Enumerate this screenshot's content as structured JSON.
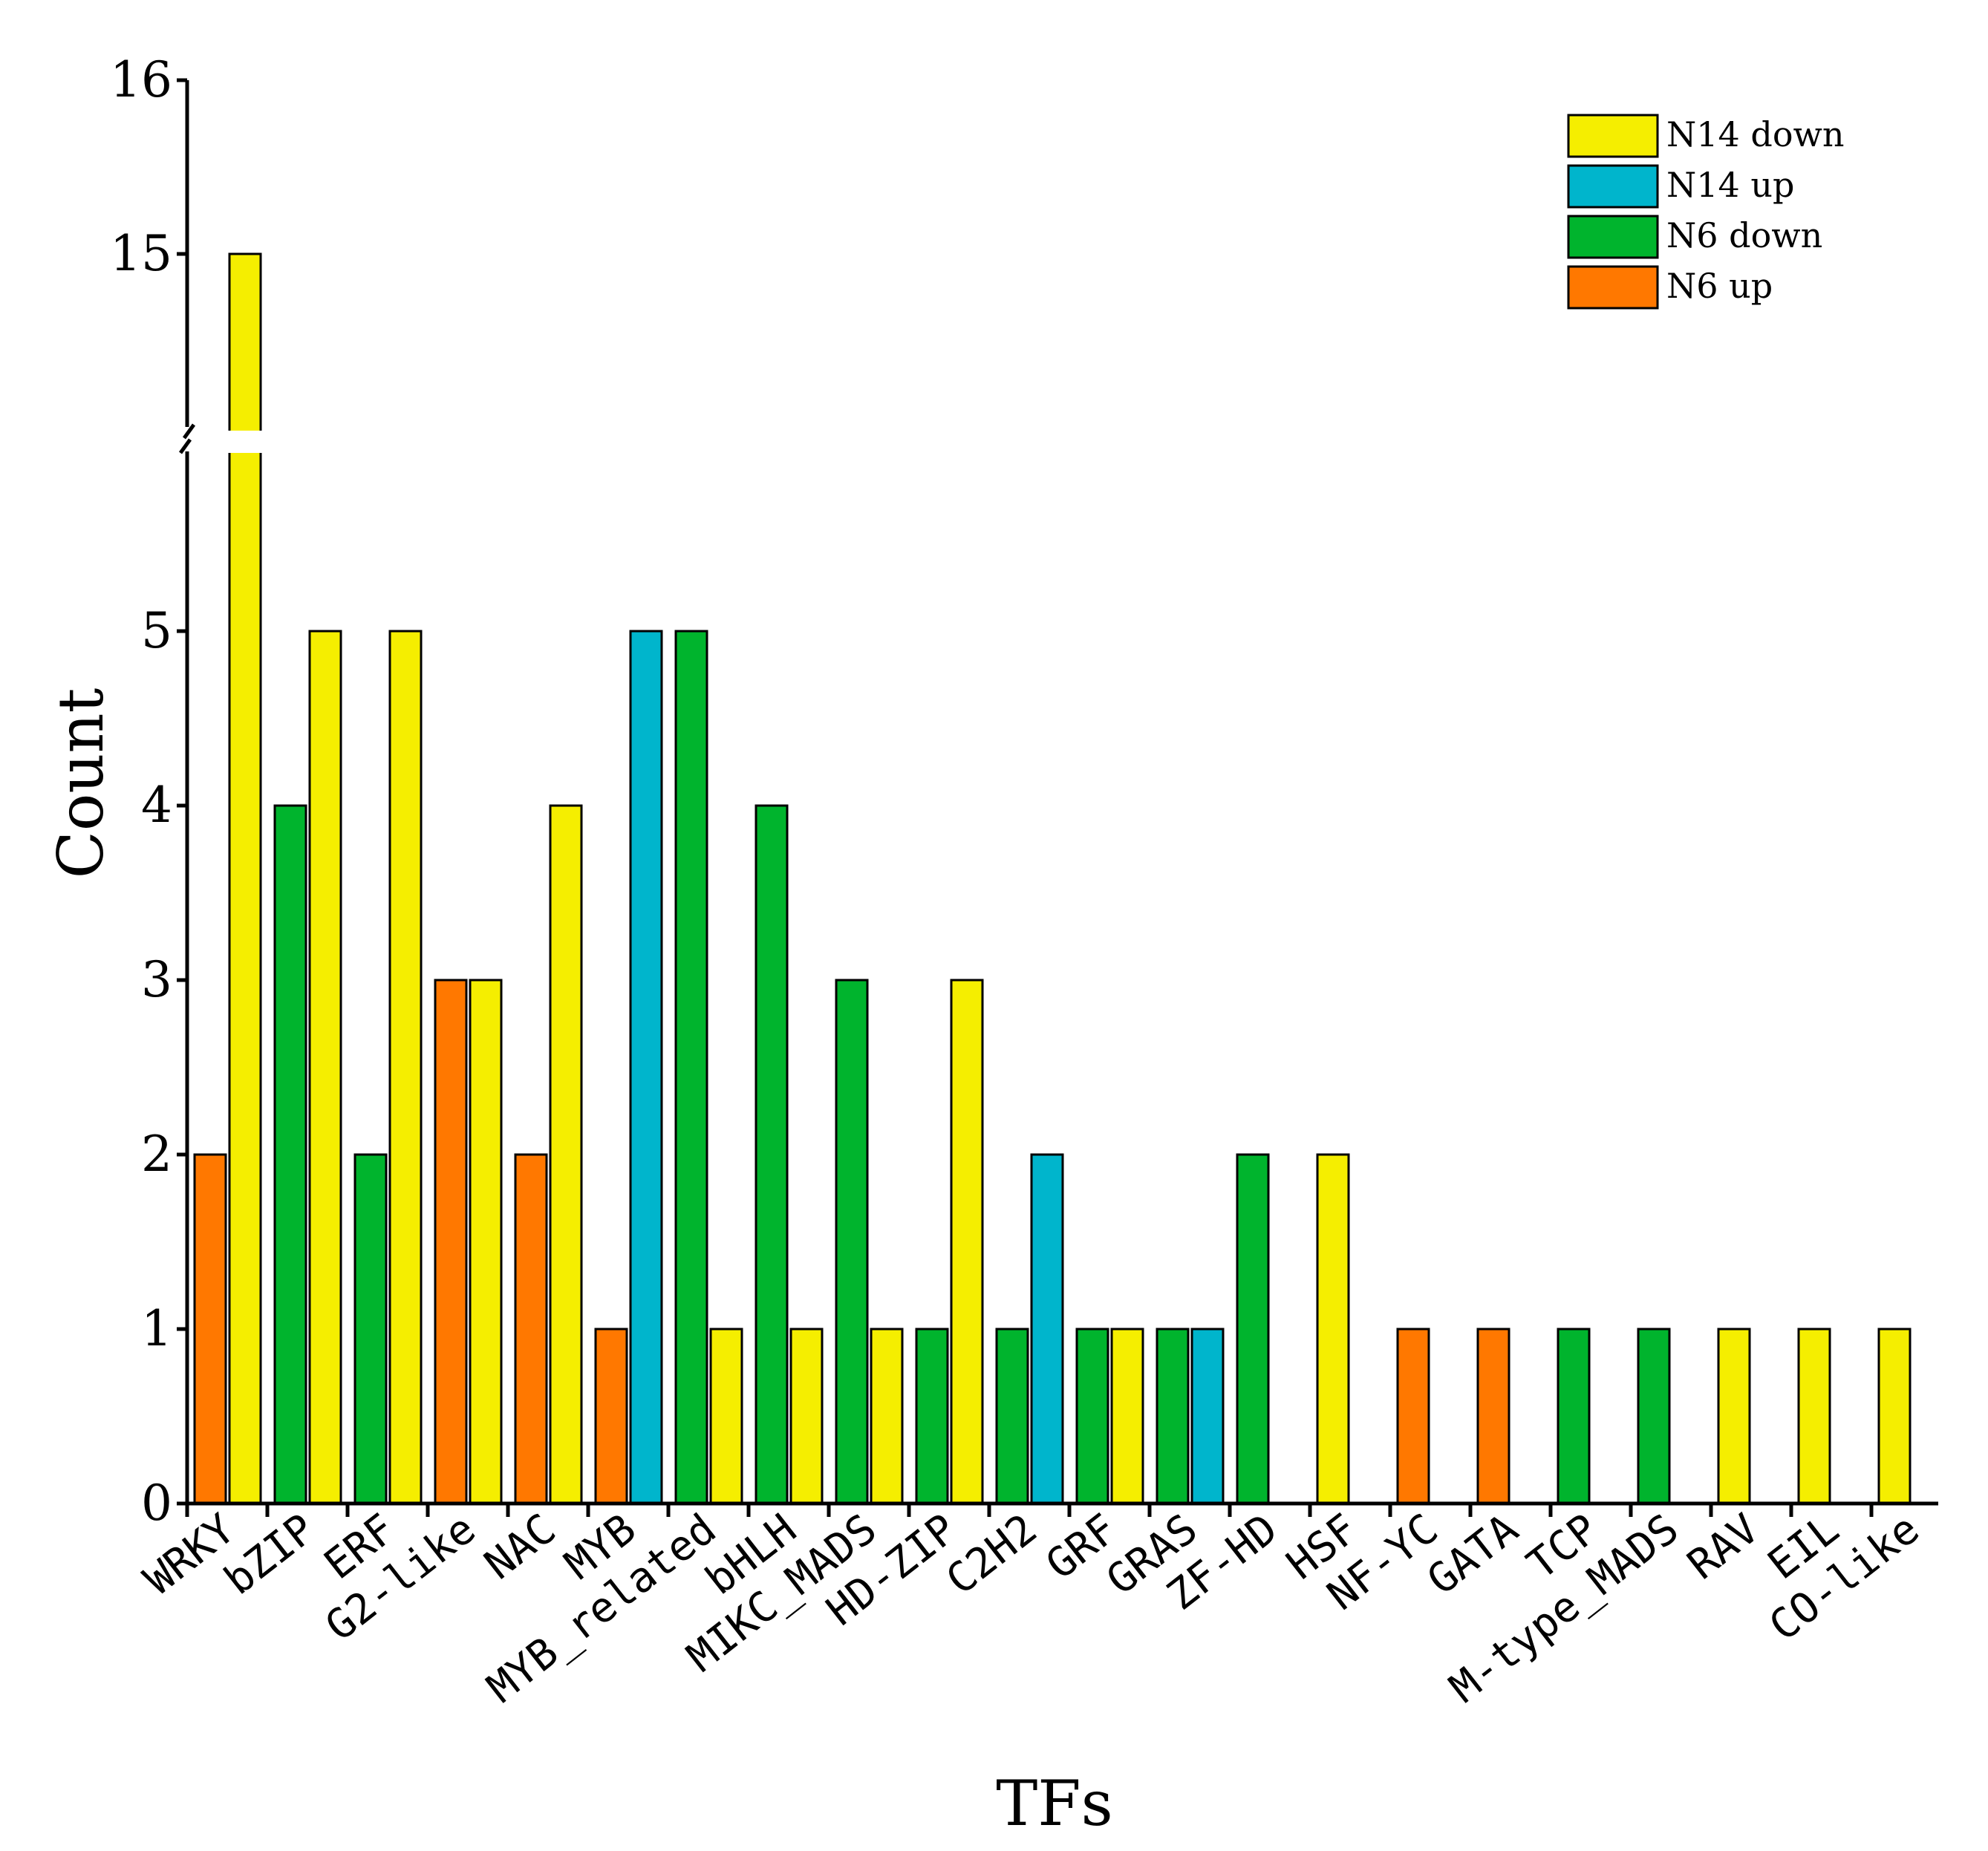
{
  "chart_data": {
    "type": "bar",
    "xlabel": "TFs",
    "ylabel": "Count",
    "y_ticks_lower": [
      0,
      1,
      2,
      3,
      4,
      5
    ],
    "y_ticks_upper": [
      15,
      16
    ],
    "y_break": [
      5.6,
      14.7
    ],
    "legend_position": "top-right",
    "series": [
      {
        "name": "N14 down",
        "color": "#f5ee00"
      },
      {
        "name": "N14 up",
        "color": "#00b5cc"
      },
      {
        "name": "N6 down",
        "color": "#00b42d"
      },
      {
        "name": "N6 up",
        "color": "#ff7800"
      }
    ],
    "categories": [
      {
        "name": "WRKY",
        "bars": [
          {
            "series": "N6 up",
            "value": 2
          },
          {
            "series": "N14 down",
            "value": 15
          }
        ]
      },
      {
        "name": "bZIP",
        "bars": [
          {
            "series": "N6 down",
            "value": 4
          },
          {
            "series": "N14 down",
            "value": 5
          }
        ]
      },
      {
        "name": "ERF",
        "bars": [
          {
            "series": "N6 down",
            "value": 2
          },
          {
            "series": "N14 down",
            "value": 5
          }
        ]
      },
      {
        "name": "G2-like",
        "bars": [
          {
            "series": "N6 up",
            "value": 3
          },
          {
            "series": "N14 down",
            "value": 3
          }
        ]
      },
      {
        "name": "NAC",
        "bars": [
          {
            "series": "N6 up",
            "value": 2
          },
          {
            "series": "N14 down",
            "value": 4
          }
        ]
      },
      {
        "name": "MYB",
        "bars": [
          {
            "series": "N6 up",
            "value": 1
          },
          {
            "series": "N14 up",
            "value": 5
          }
        ]
      },
      {
        "name": "MYB_related",
        "bars": [
          {
            "series": "N6 down",
            "value": 5
          },
          {
            "series": "N14 down",
            "value": 1
          }
        ]
      },
      {
        "name": "bHLH",
        "bars": [
          {
            "series": "N6 down",
            "value": 4
          },
          {
            "series": "N14 down",
            "value": 1
          }
        ]
      },
      {
        "name": "MIKC_MADS",
        "bars": [
          {
            "series": "N6 down",
            "value": 3
          },
          {
            "series": "N14 down",
            "value": 1
          }
        ]
      },
      {
        "name": "HD-ZIP",
        "bars": [
          {
            "series": "N6 down",
            "value": 1
          },
          {
            "series": "N14 down",
            "value": 3
          }
        ]
      },
      {
        "name": "C2H2",
        "bars": [
          {
            "series": "N6 down",
            "value": 1
          },
          {
            "series": "N14 up",
            "value": 2
          }
        ]
      },
      {
        "name": "GRF",
        "bars": [
          {
            "series": "N6 down",
            "value": 1
          },
          {
            "series": "N14 down",
            "value": 1
          }
        ]
      },
      {
        "name": "GRAS",
        "bars": [
          {
            "series": "N6 down",
            "value": 1
          },
          {
            "series": "N14 up",
            "value": 1
          }
        ]
      },
      {
        "name": "ZF-HD",
        "bars": [
          {
            "series": "N6 down",
            "value": 2
          }
        ]
      },
      {
        "name": "HSF",
        "bars": [
          {
            "series": "N14 down",
            "value": 2
          }
        ]
      },
      {
        "name": "NF-YC",
        "bars": [
          {
            "series": "N6 up",
            "value": 1
          }
        ]
      },
      {
        "name": "GATA",
        "bars": [
          {
            "series": "N6 up",
            "value": 1
          }
        ]
      },
      {
        "name": "TCP",
        "bars": [
          {
            "series": "N6 down",
            "value": 1
          }
        ]
      },
      {
        "name": "M-type_MADS",
        "bars": [
          {
            "series": "N6 down",
            "value": 1
          }
        ]
      },
      {
        "name": "RAV",
        "bars": [
          {
            "series": "N14 down",
            "value": 1
          }
        ]
      },
      {
        "name": "EIL",
        "bars": [
          {
            "series": "N14 down",
            "value": 1
          }
        ]
      },
      {
        "name": "CO-like",
        "bars": [
          {
            "series": "N14 down",
            "value": 1
          }
        ]
      }
    ]
  }
}
